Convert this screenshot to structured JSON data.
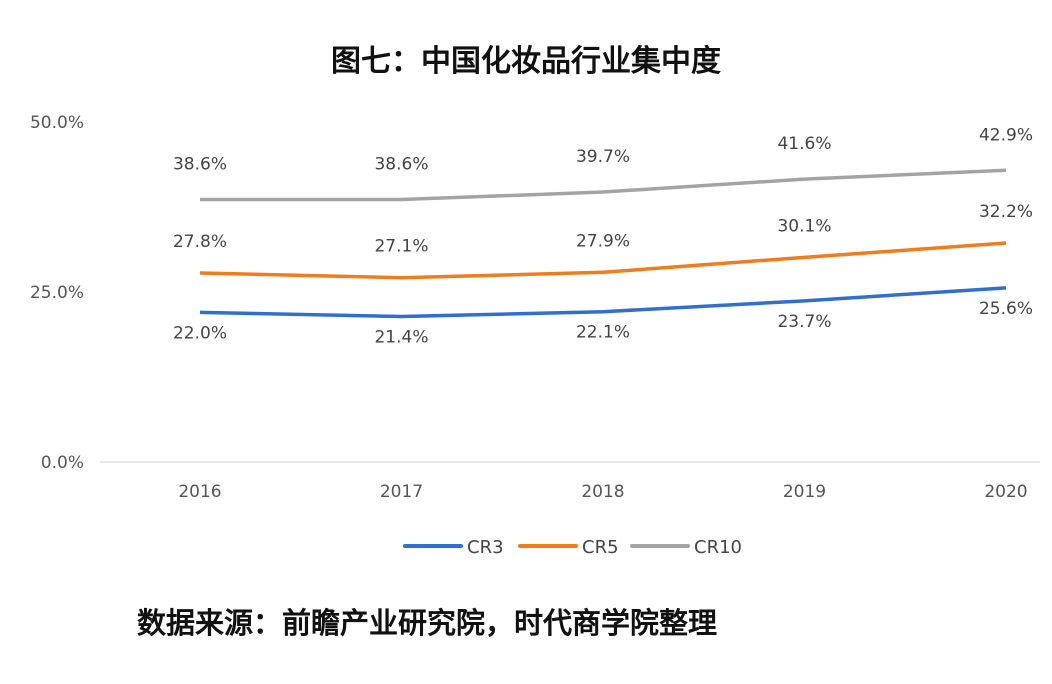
{
  "chart_data": {
    "type": "line",
    "title": "图七：中国化妆品行业集中度",
    "categories": [
      "2016",
      "2017",
      "2018",
      "2019",
      "2020"
    ],
    "series": [
      {
        "name": "CR3",
        "color": "#2f6fd0",
        "values": [
          22.0,
          21.4,
          22.1,
          23.7,
          25.6
        ],
        "labels": [
          "22.0%",
          "21.4%",
          "22.1%",
          "23.7%",
          "25.6%"
        ]
      },
      {
        "name": "CR5",
        "color": "#f07c1c",
        "values": [
          27.8,
          27.1,
          27.9,
          30.1,
          32.2
        ],
        "labels": [
          "27.8%",
          "27.1%",
          "27.9%",
          "30.1%",
          "32.2%"
        ]
      },
      {
        "name": "CR10",
        "color": "#a3a3a3",
        "values": [
          38.6,
          38.6,
          39.7,
          41.6,
          42.9
        ],
        "labels": [
          "38.6%",
          "38.6%",
          "39.7%",
          "41.6%",
          "42.9%"
        ]
      }
    ],
    "yticks": [
      "0.0%",
      "25.0%",
      "50.0%"
    ],
    "ylim": [
      0,
      50
    ],
    "grid": false,
    "legend": "bottom",
    "source": "数据来源：前瞻产业研究院，时代商学院整理"
  }
}
